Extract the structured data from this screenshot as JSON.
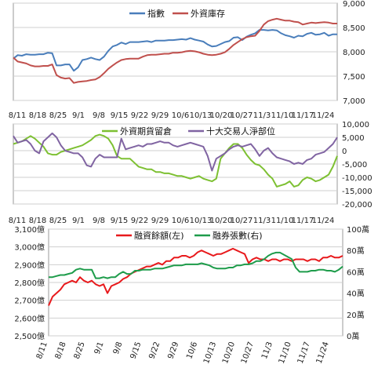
{
  "chart_data": [
    {
      "type": "line",
      "x_ticks": [
        "8/11",
        "8/18",
        "8/25",
        "9/1",
        "9/8",
        "9/15",
        "9/22",
        "9/29",
        "10/6",
        "10/13",
        "10/20",
        "10/27",
        "11/3",
        "11/10",
        "11/17",
        "11/24"
      ],
      "y_ticks": [
        "7,000",
        "7,500",
        "8,000",
        "8,500",
        "9,000"
      ],
      "ylim": [
        7000,
        9000
      ],
      "grid": true,
      "legend_position": "top",
      "series": [
        {
          "name": "指數",
          "color": "#4a7ebb",
          "values": [
            7860,
            7930,
            7920,
            7950,
            7940,
            7940,
            7950,
            7950,
            7980,
            7970,
            7720,
            7720,
            7740,
            7740,
            7610,
            7680,
            7830,
            7850,
            7880,
            7850,
            7830,
            7900,
            8020,
            8110,
            8140,
            8190,
            8160,
            8200,
            8200,
            8200,
            8210,
            8220,
            8200,
            8230,
            8230,
            8230,
            8240,
            8240,
            8250,
            8260,
            8250,
            8280,
            8250,
            8230,
            8210,
            8150,
            8110,
            8120,
            8160,
            8200,
            8220,
            8290,
            8300,
            8240,
            8310,
            8350,
            8380,
            8450,
            8450,
            8440,
            8450,
            8440,
            8380,
            8340,
            8320,
            8290,
            8330,
            8320,
            8370,
            8390,
            8350,
            8360,
            8390,
            8330,
            8360,
            8360
          ]
        },
        {
          "name": "外資庫存",
          "color": "#c0504d",
          "values": [
            7880,
            7800,
            7780,
            7760,
            7720,
            7700,
            7700,
            7710,
            7710,
            7740,
            7520,
            7470,
            7450,
            7460,
            7360,
            7380,
            7390,
            7400,
            7420,
            7430,
            7480,
            7560,
            7650,
            7720,
            7780,
            7830,
            7850,
            7860,
            7860,
            7860,
            7900,
            7930,
            7940,
            7940,
            7950,
            7960,
            7960,
            7980,
            7980,
            7990,
            8010,
            8020,
            8010,
            7990,
            7960,
            7940,
            7930,
            7940,
            7960,
            7990,
            8060,
            8140,
            8200,
            8260,
            8300,
            8320,
            8330,
            8430,
            8560,
            8630,
            8660,
            8680,
            8660,
            8640,
            8640,
            8620,
            8610,
            8560,
            8580,
            8600,
            8590,
            8600,
            8610,
            8600,
            8580,
            8580
          ]
        }
      ]
    },
    {
      "type": "line",
      "x_ticks": [
        "8/11",
        "8/18",
        "8/25",
        "9/1",
        "9/8",
        "9/15",
        "9/22",
        "9/29",
        "10/6",
        "10/13",
        "10/20",
        "10/27",
        "11/3",
        "11/10",
        "11/17",
        "11/24"
      ],
      "y_ticks": [
        "10,000",
        "5,000",
        "0",
        "-5,000",
        "-10,000",
        "-15,000",
        "-20,000"
      ],
      "ylim": [
        -20000,
        10000
      ],
      "grid": true,
      "legend_position": "top",
      "series": [
        {
          "name": "外資期貨留倉",
          "color": "#7dc032",
          "values": [
            2500,
            3000,
            3500,
            4500,
            5500,
            4500,
            3000,
            1500,
            -1000,
            -1500,
            -1500,
            -500,
            0,
            500,
            1000,
            1500,
            2000,
            3000,
            4000,
            5500,
            6000,
            5500,
            4500,
            2000,
            -2000,
            -3000,
            -3000,
            -3000,
            -4500,
            -6000,
            -6500,
            -7000,
            -7000,
            -8000,
            -8000,
            -8500,
            -8500,
            -9000,
            -9500,
            -9500,
            -10000,
            -10500,
            -10000,
            -9500,
            -10500,
            -11000,
            -11500,
            -10500,
            -3000,
            -1000,
            1000,
            2500,
            2500,
            1000,
            -1500,
            -3500,
            -5000,
            -5500,
            -7000,
            -9000,
            -10500,
            -13500,
            -13000,
            -12500,
            -11500,
            -13500,
            -13000,
            -11000,
            -10000,
            -10500,
            -11500,
            -11000,
            -10000,
            -9000,
            -6000,
            -2000
          ]
        },
        {
          "name": "十大交易人淨部位",
          "color": "#8064a2",
          "values": [
            5500,
            3000,
            3500,
            4000,
            2500,
            0,
            -1000,
            3500,
            5000,
            6500,
            5000,
            2000,
            0,
            -500,
            -1000,
            -1000,
            -2500,
            -5500,
            -6000,
            -3000,
            -1500,
            -2500,
            -2500,
            -2500,
            -2500,
            4500,
            500,
            1000,
            1500,
            2000,
            1500,
            2500,
            2500,
            3000,
            3500,
            3000,
            3000,
            2000,
            1500,
            2000,
            2500,
            3000,
            2500,
            2000,
            1500,
            -2000,
            -7500,
            -3000,
            -2000,
            -1000,
            500,
            1500,
            2000,
            1500,
            2000,
            2500,
            500,
            -2000,
            0,
            1000,
            -1000,
            -2500,
            -3000,
            -3500,
            -4000,
            -5000,
            -4500,
            -5000,
            -3500,
            -3000,
            -1500,
            -1000,
            -500,
            1000,
            2500,
            5000
          ]
        }
      ]
    },
    {
      "type": "line",
      "x_ticks": [
        "8/11",
        "8/18",
        "8/25",
        "9/1",
        "9/8",
        "9/15",
        "9/22",
        "9/29",
        "10/6",
        "10/13",
        "10/20",
        "10/27",
        "11/3",
        "11/10",
        "11/17",
        "11/24"
      ],
      "y_left_ticks": [
        "2,500億",
        "2,600億",
        "2,700億",
        "2,800億",
        "2,900億",
        "3,000億",
        "3,100億"
      ],
      "y_right_ticks": [
        "0萬",
        "20萬",
        "40萬",
        "60萬",
        "80萬",
        "100萬"
      ],
      "ylim_left": [
        2500,
        3100
      ],
      "ylim_right": [
        0,
        100
      ],
      "grid": true,
      "legend_position": "top",
      "series": [
        {
          "name": "融資餘額(左)",
          "color": "#e8191c",
          "axis": "left",
          "values": [
            2670,
            2720,
            2740,
            2760,
            2790,
            2800,
            2810,
            2800,
            2830,
            2810,
            2800,
            2810,
            2790,
            2780,
            2790,
            2740,
            2780,
            2790,
            2800,
            2820,
            2830,
            2850,
            2860,
            2870,
            2880,
            2890,
            2890,
            2900,
            2910,
            2900,
            2920,
            2920,
            2940,
            2940,
            2950,
            2950,
            2940,
            2950,
            2970,
            2980,
            2970,
            2960,
            2950,
            2960,
            2960,
            2970,
            2980,
            2990,
            2980,
            2970,
            2960,
            2910,
            2930,
            2940,
            2930,
            2930,
            2920,
            2930,
            2930,
            2920,
            2930,
            2930,
            2920,
            2930,
            2930,
            2930,
            2920,
            2930,
            2930,
            2920,
            2940,
            2940,
            2950,
            2940,
            2940,
            2950
          ]
        },
        {
          "name": "融券張數(右)",
          "color": "#1e9c4b",
          "axis": "right",
          "values": [
            55,
            55,
            56,
            57,
            57,
            58,
            59,
            62,
            63,
            62,
            62,
            62,
            54,
            54,
            55,
            54,
            55,
            55,
            58,
            60,
            58,
            58,
            61,
            61,
            62,
            62,
            62,
            63,
            63,
            63,
            64,
            65,
            66,
            66,
            66,
            67,
            67,
            67,
            67,
            68,
            67,
            66,
            64,
            63,
            63,
            63,
            64,
            64,
            66,
            66,
            67,
            67,
            68,
            70,
            70,
            72,
            75,
            77,
            78,
            78,
            76,
            74,
            72,
            64,
            60,
            60,
            60,
            61,
            61,
            62,
            62,
            61,
            61,
            60,
            62,
            65
          ]
        }
      ]
    }
  ]
}
